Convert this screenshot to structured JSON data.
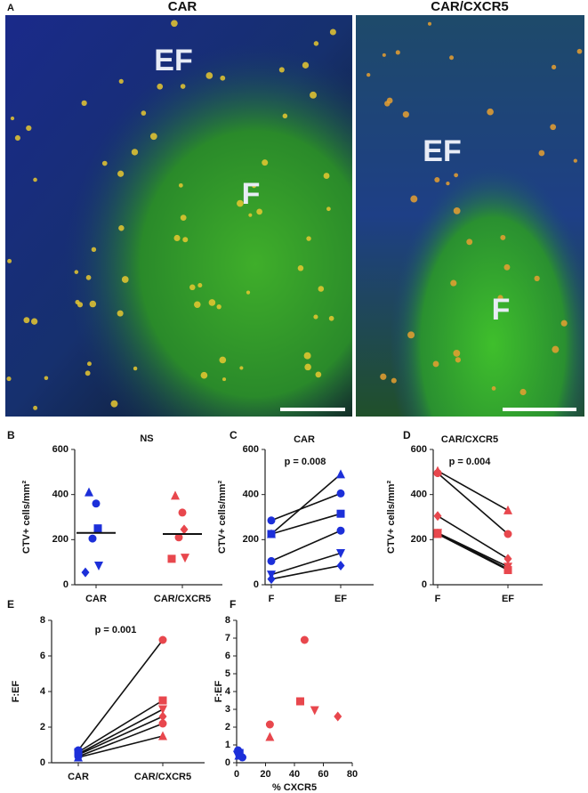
{
  "panel_a": {
    "label": "A",
    "images": [
      {
        "title": "CAR",
        "regions": [
          "EF",
          "F"
        ]
      },
      {
        "title": "CAR/CXCR5",
        "regions": [
          "EF",
          "F"
        ]
      }
    ]
  },
  "chart_data": [
    {
      "panel": "B",
      "type": "strip",
      "annotation": "NS",
      "ylabel": "CTV+ cells/mm²",
      "categories": [
        "CAR",
        "CAR/CXCR5"
      ],
      "ylim": [
        0,
        600
      ],
      "yticks": [
        0,
        200,
        400,
        600
      ],
      "groups": [
        {
          "color": "#1c2fd9",
          "markers": [
            "triangle",
            "circle",
            "square",
            "circle",
            "triangle-down",
            "diamond"
          ],
          "values": [
            410,
            360,
            250,
            205,
            85,
            55
          ]
        },
        {
          "color": "#e8474d",
          "markers": [
            "triangle",
            "circle",
            "diamond",
            "circle",
            "triangle-down",
            "square"
          ],
          "values": [
            395,
            320,
            245,
            210,
            120,
            115
          ]
        }
      ],
      "means": [
        230,
        225
      ]
    },
    {
      "panel": "C",
      "type": "paired",
      "title": "CAR",
      "annotation": "p = 0.008",
      "ylabel": "CTV+ cells/mm²",
      "categories": [
        "F",
        "EF"
      ],
      "ylim": [
        0,
        600
      ],
      "yticks": [
        0,
        200,
        400,
        600
      ],
      "groups": [
        {
          "color": "#1c2fd9",
          "markers": [
            "circle",
            "triangle",
            "square",
            "circle",
            "triangle-down",
            "diamond"
          ],
          "values": [
            285,
            225,
            225,
            105,
            45,
            25
          ]
        },
        {
          "color": "#1c2fd9",
          "markers": [
            "circle",
            "triangle",
            "square",
            "circle",
            "triangle-down",
            "diamond"
          ],
          "values": [
            405,
            490,
            315,
            240,
            140,
            85
          ]
        }
      ]
    },
    {
      "panel": "D",
      "type": "paired",
      "title": "CAR/CXCR5",
      "annotation": "p = 0.004",
      "ylabel": "CTV+ cells/mm²",
      "categories": [
        "F",
        "EF"
      ],
      "ylim": [
        0,
        600
      ],
      "yticks": [
        0,
        200,
        400,
        600
      ],
      "groups": [
        {
          "color": "#e8474d",
          "markers": [
            "triangle",
            "circle",
            "diamond",
            "triangle-down",
            "square",
            "circle"
          ],
          "values": [
            505,
            495,
            305,
            230,
            225,
            230
          ]
        },
        {
          "color": "#e8474d",
          "markers": [
            "triangle",
            "circle",
            "diamond",
            "triangle-down",
            "square",
            "circle"
          ],
          "values": [
            330,
            225,
            115,
            80,
            65,
            70
          ]
        }
      ]
    },
    {
      "panel": "E",
      "type": "paired",
      "annotation": "p = 0.001",
      "ylabel": "F:EF",
      "categories": [
        "CAR",
        "CAR/CXCR5"
      ],
      "ylim": [
        0,
        8
      ],
      "yticks": [
        0,
        2,
        4,
        6,
        8
      ],
      "groups": [
        {
          "color": "#1c2fd9",
          "markers": [
            "circle",
            "square",
            "triangle-down",
            "diamond",
            "circle",
            "triangle"
          ],
          "values": [
            0.7,
            0.6,
            0.5,
            0.45,
            0.35,
            0.3
          ]
        },
        {
          "color": "#e8474d",
          "markers": [
            "circle",
            "square",
            "triangle-down",
            "diamond",
            "circle",
            "triangle"
          ],
          "values": [
            6.9,
            3.5,
            3.0,
            2.6,
            2.2,
            1.5
          ]
        }
      ]
    },
    {
      "panel": "F",
      "type": "scatter",
      "ylabel": "F:EF",
      "xlabel": "% CXCR5",
      "xlim": [
        0,
        80
      ],
      "xticks": [
        0,
        20,
        40,
        60,
        80
      ],
      "ylim": [
        0,
        8
      ],
      "yticks": [
        0,
        1,
        2,
        3,
        4,
        5,
        6,
        7,
        8
      ],
      "series": [
        {
          "color": "#1c2fd9",
          "markers": [
            "circle",
            "square",
            "triangle-down",
            "diamond",
            "circle",
            "triangle"
          ],
          "x": [
            1,
            2,
            0.5,
            3,
            4,
            1.5
          ],
          "y": [
            0.7,
            0.55,
            0.45,
            0.35,
            0.3,
            0.4
          ]
        },
        {
          "color": "#e8474d",
          "markers": [
            "circle",
            "square",
            "triangle-down",
            "diamond",
            "circle",
            "triangle"
          ],
          "x": [
            47,
            44,
            54,
            70,
            23,
            23
          ],
          "y": [
            6.9,
            3.45,
            2.95,
            2.6,
            2.15,
            1.45
          ]
        }
      ]
    }
  ]
}
